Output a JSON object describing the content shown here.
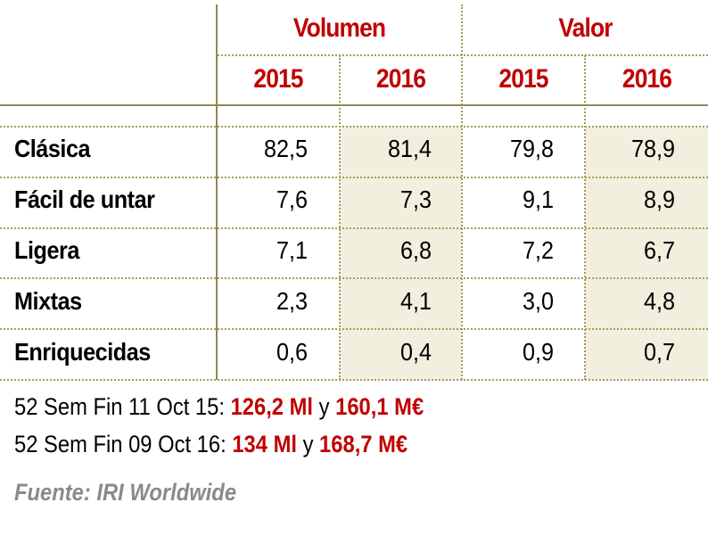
{
  "header": {
    "groups": [
      "Volumen",
      "Valor"
    ],
    "years": [
      "2015",
      "2016",
      "2015",
      "2016"
    ]
  },
  "rows": [
    {
      "label": "Clásica",
      "values": [
        "82,5",
        "81,4",
        "79,8",
        "78,9"
      ]
    },
    {
      "label": "Fácil de untar",
      "values": [
        "7,6",
        "7,3",
        "9,1",
        "8,9"
      ]
    },
    {
      "label": "Ligera",
      "values": [
        "7,1",
        "6,8",
        "7,2",
        "6,7"
      ]
    },
    {
      "label": "Mixtas",
      "values": [
        "2,3",
        "4,1",
        "3,0",
        "4,8"
      ]
    },
    {
      "label": "Enriquecidas",
      "values": [
        "0,6",
        "0,4",
        "0,9",
        "0,7"
      ]
    }
  ],
  "footnotes": [
    {
      "prefix": "52 Sem Fin 11 Oct 15: ",
      "vol": "126,2 Ml",
      "and": " y ",
      "val": "160,1 M€"
    },
    {
      "prefix": "52 Sem Fin 09 Oct 16: ",
      "vol": "134 Ml",
      "and": " y ",
      "val": "168,7 M€"
    }
  ],
  "source": "Fuente: IRI Worldwide",
  "colors": {
    "accent": "#c00000",
    "rule": "#8f8a52",
    "shade": "#f3efdf",
    "source": "#8a8a8a"
  }
}
